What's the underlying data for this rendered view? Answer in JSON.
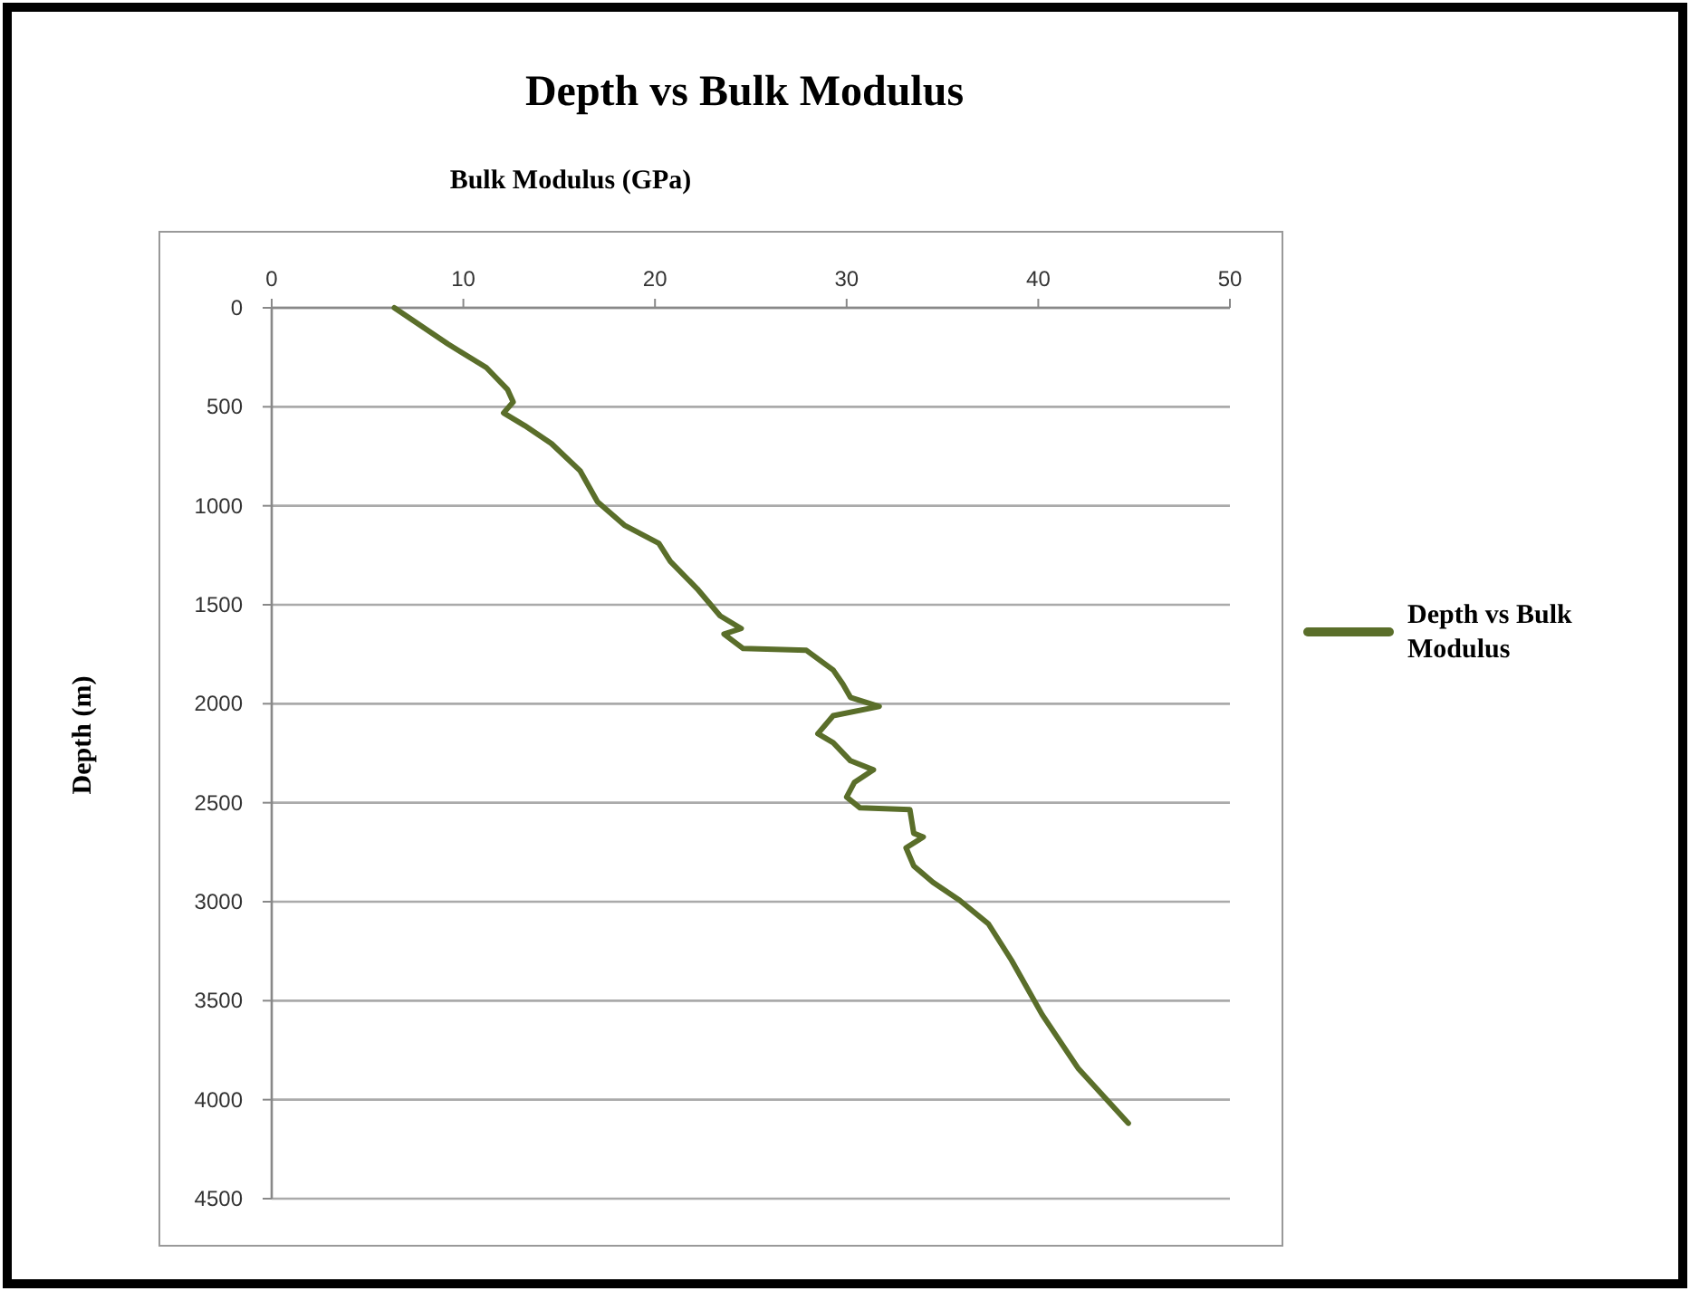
{
  "chart_data": {
    "type": "line",
    "title": "Depth vs Bulk Modulus",
    "xlabel": "Bulk Modulus (GPa)",
    "ylabel": "Depth (m)",
    "xlim": [
      0,
      50
    ],
    "xticks": [
      0,
      10,
      20,
      30,
      40,
      50
    ],
    "ylim": [
      4500,
      0
    ],
    "yticks": [
      0,
      500,
      1000,
      1500,
      2000,
      2500,
      3000,
      3500,
      4000,
      4500
    ],
    "grid": "y",
    "legend": "right",
    "series": [
      {
        "name": "Depth vs Bulk Modulus",
        "color": "#5a6e2a",
        "x": [
          6.4,
          9.2,
          11.2,
          12.3,
          12.6,
          12.1,
          13.2,
          14.6,
          16.1,
          17.0,
          18.4,
          20.2,
          20.8,
          22.2,
          23.4,
          24.5,
          23.6,
          24.6,
          27.9,
          29.3,
          29.8,
          30.2,
          31.7,
          29.3,
          28.5,
          29.3,
          30.2,
          31.4,
          30.4,
          30.0,
          30.7,
          33.3,
          33.5,
          34.0,
          33.1,
          33.5,
          34.5,
          35.9,
          37.4,
          38.6,
          40.2,
          42.1,
          44.7
        ],
        "values": [
          0,
          183,
          302,
          412,
          476,
          531,
          595,
          686,
          824,
          980,
          1098,
          1190,
          1281,
          1419,
          1556,
          1620,
          1648,
          1721,
          1730,
          1830,
          1900,
          1968,
          2014,
          2060,
          2151,
          2197,
          2288,
          2334,
          2398,
          2471,
          2526,
          2535,
          2654,
          2673,
          2728,
          2819,
          2902,
          2993,
          3112,
          3295,
          3570,
          3844,
          4119
        ]
      }
    ]
  }
}
